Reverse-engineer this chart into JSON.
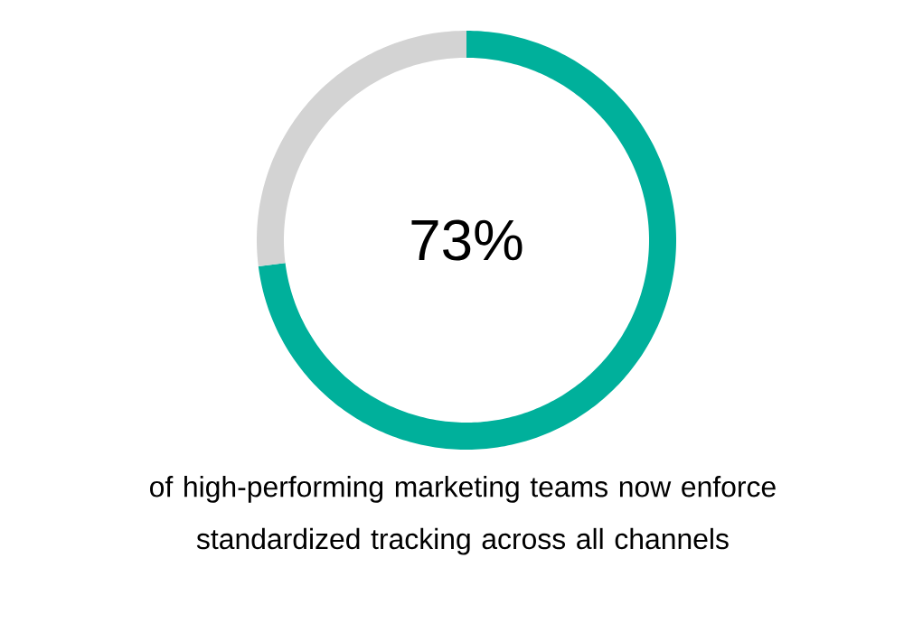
{
  "chart_data": {
    "type": "donut",
    "categories": [
      null,
      null
    ],
    "values": [
      73,
      27
    ],
    "colors": [
      "#00b09b",
      "#d3d3d3"
    ],
    "value_labels": [
      "73%",
      null
    ],
    "annotations": [
      "of high-performing marketing teams now enforce standardized tracking across all channels"
    ]
  }
}
